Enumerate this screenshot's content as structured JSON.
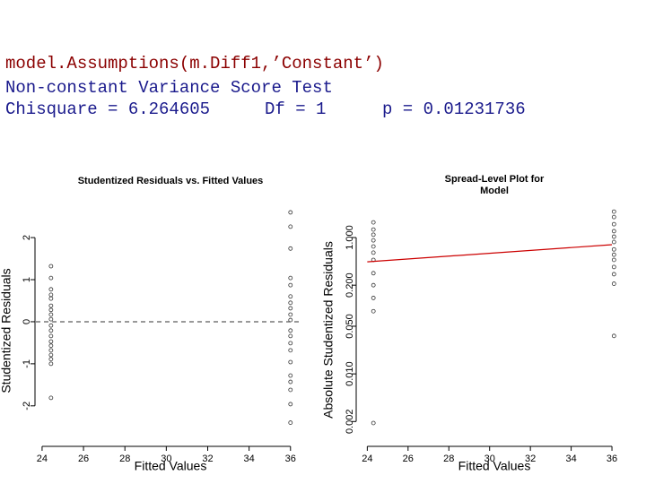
{
  "header": {
    "call": "model.Assumptions(m.Diff1,’Constant’)",
    "test_name": "Non-constant Variance Score Test",
    "chisquare": "Chisquare = 6.264605",
    "df": "Df = 1",
    "p": "p = 0.01231736"
  },
  "chart_data": [
    {
      "type": "scatter",
      "title": [
        "Studentized Residuals vs. Fitted Values"
      ],
      "x_label": "Fitted Values",
      "y_label": "Studentized Residuals",
      "xlim": [
        23.7,
        36.4
      ],
      "ylim": [
        -2.75,
        3.6
      ],
      "xticks": [
        24,
        26,
        28,
        30,
        32,
        34,
        36
      ],
      "yticks": [
        -2,
        -1,
        0,
        1,
        2
      ],
      "log_y": false,
      "hline": 0,
      "x": [
        24.43,
        24.43,
        24.43,
        24.43,
        24.43,
        24.43,
        24.43,
        24.43,
        24.43,
        24.43,
        24.43,
        24.43,
        24.43,
        24.43,
        24.43,
        24.43,
        24.43,
        24.43,
        24.43,
        36,
        36,
        36,
        36,
        36,
        36,
        36,
        36,
        36,
        36,
        36,
        36,
        36,
        36,
        36,
        36,
        36,
        36,
        36,
        36
      ],
      "values": [
        1.32,
        1.04,
        0.77,
        0.64,
        0.55,
        0.38,
        0.28,
        0.17,
        0.06,
        -0.09,
        -0.21,
        -0.34,
        -0.47,
        -0.57,
        -0.68,
        -0.79,
        -0.89,
        -1.0,
        -1.81,
        2.6,
        2.26,
        1.74,
        1.04,
        0.87,
        0.6,
        0.45,
        0.32,
        0.17,
        0.04,
        -0.21,
        -0.34,
        -0.51,
        -0.68,
        -0.96,
        -1.28,
        -1.43,
        -1.62,
        -1.96,
        -2.4
      ]
    },
    {
      "type": "scatter",
      "title": [
        "Spread-Level Plot for",
        "Model"
      ],
      "x_label": "Fitted Values",
      "y_label": "Absolute Studentized Residuals",
      "xlim": [
        23.5,
        36.57
      ],
      "ylim": [
        0.00117,
        10.3
      ],
      "xticks": [
        24,
        26,
        28,
        30,
        32,
        34,
        36
      ],
      "yticks": [
        0.002,
        {
          "value": 0.01,
          "label": "0.010"
        },
        {
          "value": 0.05,
          "label": "0.050"
        },
        {
          "value": 0.2,
          "label": "0.200"
        },
        {
          "value": 1,
          "label": "1.000"
        }
      ],
      "log_y": true,
      "fit_line": {
        "x": [
          24,
          36
        ],
        "y": [
          0.44,
          0.785
        ],
        "color": "#cc0000"
      },
      "x": [
        24.3,
        24.3,
        24.3,
        24.3,
        24.3,
        24.3,
        24.3,
        24.3,
        24.3,
        24.3,
        24.3,
        24.3,
        36.1,
        36.1,
        36.1,
        36.1,
        36.1,
        36.1,
        36.1,
        36.1,
        36.1,
        36.1,
        36.1,
        36.1,
        36.1
      ],
      "values": [
        1.67,
        1.31,
        1.1,
        0.91,
        0.74,
        0.6,
        0.47,
        0.3,
        0.2,
        0.13,
        0.083,
        0.0019,
        2.4,
        2.0,
        1.57,
        1.24,
        1.03,
        0.86,
        0.67,
        0.56,
        0.47,
        0.37,
        0.29,
        0.21,
        0.036
      ]
    }
  ]
}
